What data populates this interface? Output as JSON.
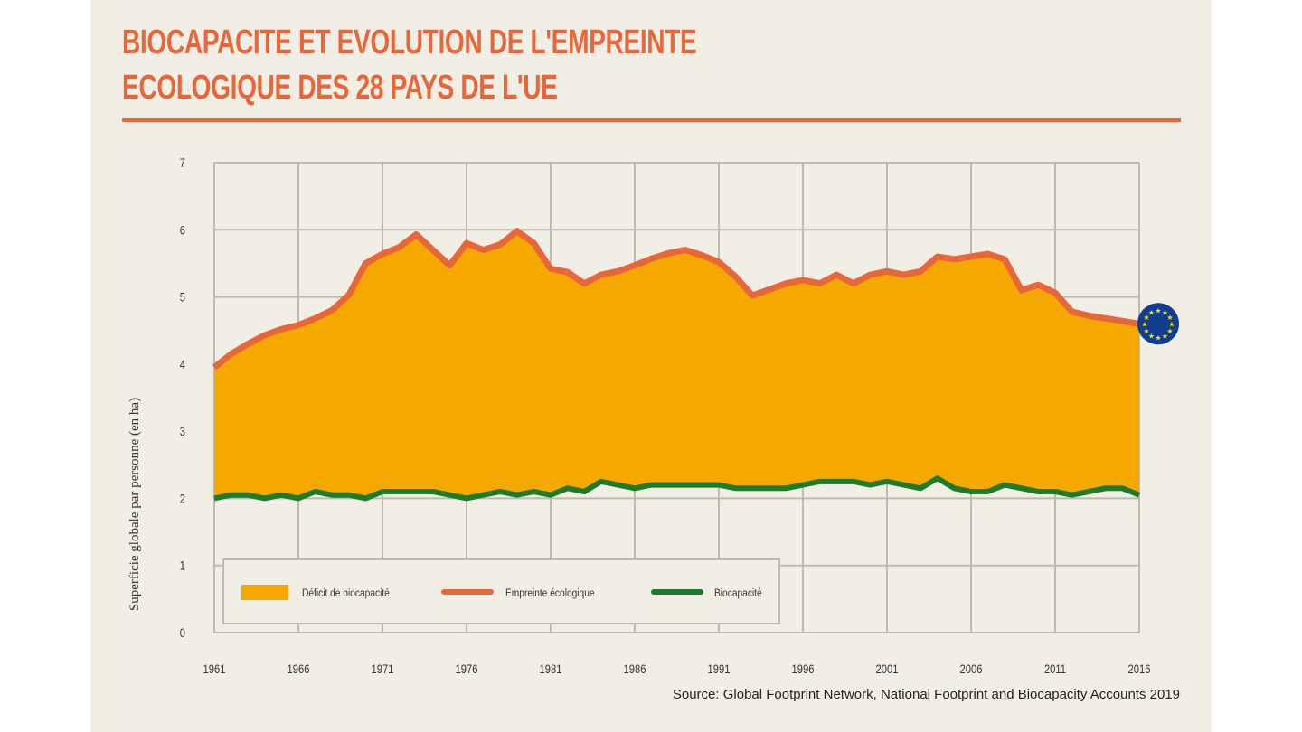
{
  "title_lines": [
    "BIOCAPACITE ET EVOLUTION DE L'EMPREINTE",
    "ECOLOGIQUE DES 28 PAYS DE L'UE"
  ],
  "source": "Source: Global Footprint Network, National Footprint and Biocapacity Accounts 2019",
  "colors": {
    "accent": "#e8673a",
    "deficit": "#f5a800",
    "footprint": "#e8673a",
    "biocapacity": "#1e7b2c",
    "grid": "#bdbbae",
    "eu_flag": "#123e8f",
    "eu_stars": "#f4e11a"
  },
  "chart_data": {
    "type": "area",
    "title": "BIOCAPACITE ET EVOLUTION DE L'EMPREINTE ECOLOGIQUE DES 28 PAYS DE L'UE",
    "xlabel": "",
    "ylabel": "Superficie globale par personne (en ha)",
    "xlim": [
      1961,
      2016
    ],
    "ylim": [
      0,
      7
    ],
    "grid": true,
    "legend_placement": "bottom-left",
    "x_ticks": [
      "1961",
      "1966",
      "1971",
      "1976",
      "1981",
      "1986",
      "1991",
      "1996",
      "2001",
      "2006",
      "2011",
      "2016"
    ],
    "y_ticks": [
      "0",
      "1",
      "2",
      "3",
      "4",
      "5",
      "6",
      "7"
    ],
    "legend": [
      "Déficit de biocapacité",
      "Empreinte écologique",
      "Biocapacité"
    ],
    "x": [
      1961,
      1962,
      1963,
      1964,
      1965,
      1966,
      1967,
      1968,
      1969,
      1970,
      1971,
      1972,
      1973,
      1974,
      1975,
      1976,
      1977,
      1978,
      1979,
      1980,
      1981,
      1982,
      1983,
      1984,
      1985,
      1986,
      1987,
      1988,
      1989,
      1990,
      1991,
      1992,
      1993,
      1994,
      1995,
      1996,
      1997,
      1998,
      1999,
      2000,
      2001,
      2002,
      2003,
      2004,
      2005,
      2006,
      2007,
      2008,
      2009,
      2010,
      2011,
      2012,
      2013,
      2014,
      2015,
      2016
    ],
    "series": [
      {
        "name": "Empreinte écologique",
        "values": [
          3.95,
          4.15,
          4.3,
          4.43,
          4.52,
          4.58,
          4.68,
          4.8,
          5.03,
          5.5,
          5.64,
          5.74,
          5.93,
          5.7,
          5.47,
          5.8,
          5.7,
          5.78,
          5.98,
          5.8,
          5.42,
          5.37,
          5.2,
          5.33,
          5.38,
          5.47,
          5.57,
          5.65,
          5.7,
          5.62,
          5.52,
          5.3,
          5.02,
          5.11,
          5.2,
          5.25,
          5.2,
          5.33,
          5.2,
          5.33,
          5.38,
          5.33,
          5.38,
          5.6,
          5.56,
          5.6,
          5.64,
          5.56,
          5.1,
          5.18,
          5.06,
          4.78,
          4.72,
          4.68,
          4.64,
          4.6
        ]
      },
      {
        "name": "Biocapacité",
        "values": [
          2.0,
          2.05,
          2.05,
          2.0,
          2.05,
          2.0,
          2.1,
          2.05,
          2.05,
          2.0,
          2.1,
          2.1,
          2.1,
          2.1,
          2.05,
          2.0,
          2.05,
          2.1,
          2.05,
          2.1,
          2.05,
          2.15,
          2.1,
          2.25,
          2.2,
          2.15,
          2.2,
          2.2,
          2.2,
          2.2,
          2.2,
          2.15,
          2.15,
          2.15,
          2.15,
          2.2,
          2.25,
          2.25,
          2.25,
          2.2,
          2.25,
          2.2,
          2.15,
          2.3,
          2.15,
          2.1,
          2.1,
          2.2,
          2.15,
          2.1,
          2.1,
          2.05,
          2.1,
          2.15,
          2.15,
          2.05
        ]
      }
    ]
  }
}
